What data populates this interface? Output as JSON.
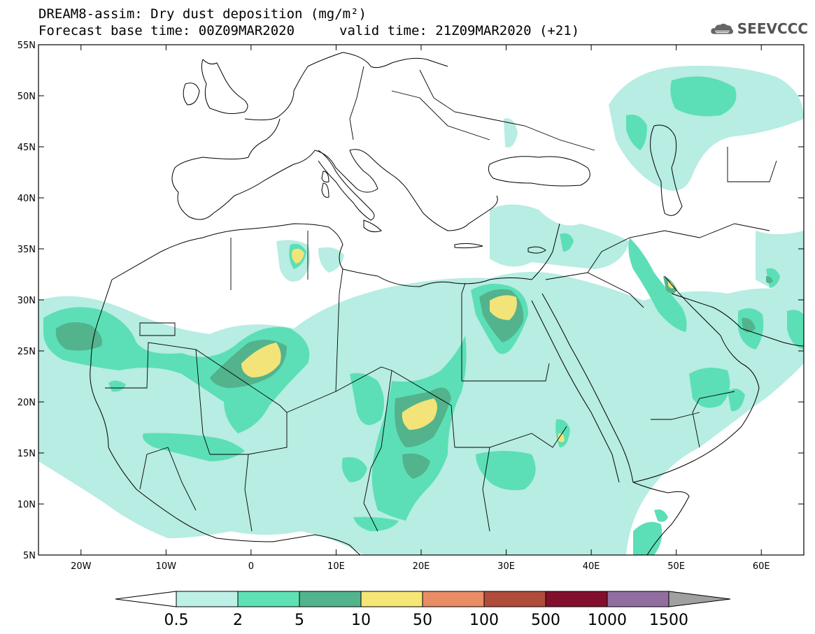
{
  "header": {
    "title_line1": "DREAM8-assim: Dry dust deposition (mg/m²)",
    "title_line2": "Forecast base time: 00Z09MAR2020",
    "valid_time": "valid time: 21Z09MAR2020 (+21)",
    "logo_text": "SEEVCCC",
    "logo_icon": "cloud-icon"
  },
  "map": {
    "lon_range": [
      -25,
      65
    ],
    "lat_range": [
      5,
      55
    ],
    "lat_labels": [
      "55N",
      "50N",
      "45N",
      "40N",
      "35N",
      "30N",
      "25N",
      "20N",
      "15N",
      "10N",
      "5N"
    ],
    "lon_labels": [
      "20W",
      "10W",
      "0",
      "10E",
      "20E",
      "30E",
      "40E",
      "50E",
      "60E"
    ],
    "colors": {
      "c1": "#b7ede2",
      "c2": "#5cdfb6",
      "c3": "#52b38c",
      "c4": "#f2e478"
    }
  },
  "colorbar": {
    "labels": [
      "0.5",
      "2",
      "5",
      "10",
      "50",
      "100",
      "500",
      "1000",
      "1500"
    ],
    "colors": [
      "#bdf0e6",
      "#5ee1b4",
      "#52b48c",
      "#f5e676",
      "#ea8c64",
      "#b04c3c",
      "#82102c",
      "#926ea0"
    ],
    "under_color": "#ffffff",
    "over_color": "#a0a0a0"
  }
}
